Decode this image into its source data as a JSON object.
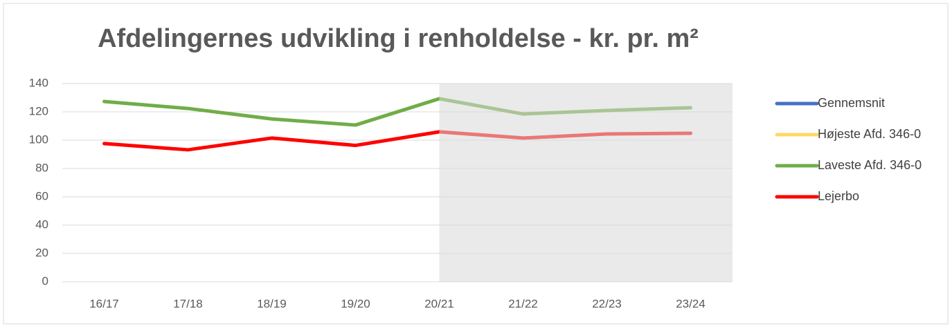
{
  "chart_data": {
    "type": "line",
    "title": "Afdelingernes udvikling i renholdelse - kr. pr. m²",
    "categories": [
      "16/17",
      "17/18",
      "18/19",
      "19/20",
      "20/21",
      "21/22",
      "22/23",
      "23/24"
    ],
    "series": [
      {
        "name": "Gennemsnit",
        "color": "#4472c4",
        "values": [
          null,
          null,
          null,
          null,
          null,
          null,
          null,
          null
        ]
      },
      {
        "name": "Højeste Afd. 346-0",
        "color": "#ffd966",
        "values": [
          null,
          null,
          null,
          null,
          null,
          null,
          null,
          null
        ]
      },
      {
        "name": "Laveste Afd. 346-0",
        "color": "#70ad47",
        "values": [
          127.3,
          122.4,
          115,
          110.7,
          129.3,
          118.5,
          121,
          122.9
        ]
      },
      {
        "name": "Lejerbo",
        "color": "#ff0000",
        "values": [
          97.6,
          93.2,
          101.5,
          96.3,
          105.9,
          101.5,
          104.4,
          104.9
        ]
      }
    ],
    "ylim": [
      0,
      140
    ],
    "yticks": [
      0,
      20,
      40,
      60,
      80,
      100,
      120,
      140
    ],
    "grid": true,
    "legend": "right",
    "shade_from": "20/21"
  }
}
